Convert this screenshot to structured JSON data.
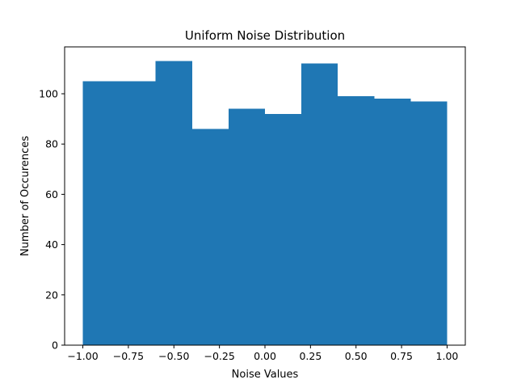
{
  "chart_data": {
    "type": "bar",
    "title": "Uniform Noise Distribution",
    "xlabel": "Noise Values",
    "ylabel": "Number of Occurences",
    "bin_edges": [
      -1.0,
      -0.8,
      -0.6,
      -0.4,
      -0.2,
      0.0,
      0.2,
      0.4,
      0.6,
      0.8,
      1.0
    ],
    "values": [
      105,
      105,
      113,
      86,
      94,
      92,
      112,
      99,
      98,
      97
    ],
    "xlim": [
      -1.1,
      1.1
    ],
    "ylim": [
      0,
      118.65
    ],
    "xticks": [
      -1.0,
      -0.75,
      -0.5,
      -0.25,
      0.0,
      0.25,
      0.5,
      0.75,
      1.0
    ],
    "xtick_labels": [
      "−1.00",
      "−0.75",
      "−0.50",
      "−0.25",
      "0.00",
      "0.25",
      "0.50",
      "0.75",
      "1.00"
    ],
    "yticks": [
      0,
      20,
      40,
      60,
      80,
      100
    ],
    "ytick_labels": [
      "0",
      "20",
      "40",
      "60",
      "80",
      "100"
    ],
    "bar_color": "#1f77b4",
    "grid": false,
    "legend": false
  }
}
